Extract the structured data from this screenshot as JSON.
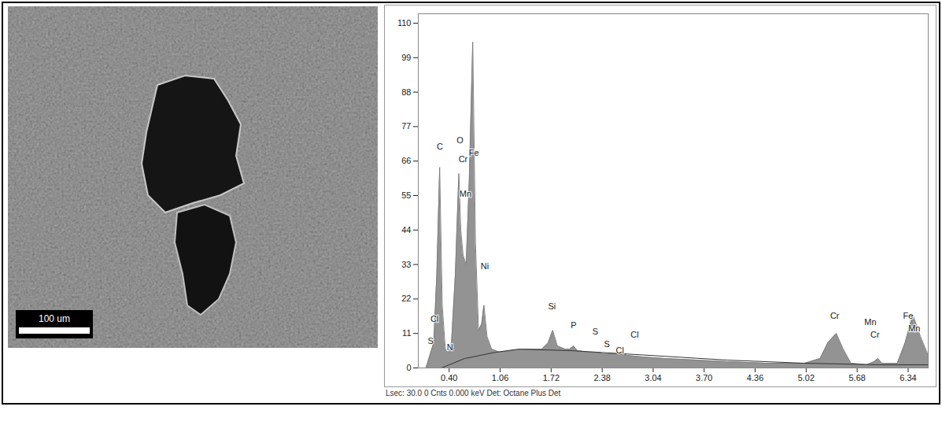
{
  "image": {
    "scale_bar_label": "100 um"
  },
  "chart_data": {
    "type": "area",
    "xlim": [
      0,
      6.6
    ],
    "xticks": [
      {
        "value": 0.4,
        "label": "0.40"
      },
      1.06,
      1.72,
      2.38,
      3.04,
      {
        "value": 3.7,
        "label": "3.70"
      },
      4.36,
      5.02,
      5.68,
      6.34
    ],
    "ylim": [
      0,
      113
    ],
    "yticks": [
      0,
      11,
      22,
      33,
      44,
      55,
      66,
      77,
      88,
      99,
      110
    ],
    "grid": false,
    "series": [
      {
        "type": "area",
        "color": "#808080",
        "x": [
          0.1,
          0.15,
          0.2,
          0.24,
          0.277,
          0.31,
          0.35,
          0.39,
          0.43,
          0.48,
          0.525,
          0.55,
          0.58,
          0.62,
          0.66,
          0.705,
          0.74,
          0.78,
          0.82,
          0.85,
          0.89,
          0.95,
          1.05,
          1.2,
          1.4,
          1.6,
          1.68,
          1.74,
          1.8,
          1.9,
          1.96,
          2.01,
          2.06,
          2.2,
          2.31,
          2.4,
          2.55,
          2.62,
          2.7,
          2.9,
          3.2,
          3.6,
          4.0,
          4.5,
          5.0,
          5.2,
          5.3,
          5.41,
          5.5,
          5.6,
          5.8,
          5.9,
          5.95,
          6.0,
          6.2,
          6.3,
          6.4,
          6.5,
          6.6
        ],
        "values": [
          0,
          4,
          8,
          30,
          64,
          20,
          6,
          5,
          8,
          30,
          62,
          44,
          36,
          33,
          60,
          104,
          40,
          12,
          14,
          20,
          10,
          6,
          5,
          5.5,
          6,
          6,
          8,
          12,
          7,
          6,
          6,
          7,
          5.5,
          5,
          5,
          4.5,
          4.5,
          5,
          4,
          3.5,
          3,
          2.5,
          2,
          1.5,
          1.5,
          3,
          8,
          11,
          6,
          1.5,
          1,
          2,
          3,
          1.5,
          1.5,
          8,
          17,
          10,
          4
        ]
      },
      {
        "type": "line",
        "color": "#333333",
        "x": [
          0.3,
          0.6,
          1.0,
          1.3,
          2.0,
          3.0,
          4.0,
          5.0,
          6.0,
          6.6
        ],
        "values": [
          0,
          3,
          5,
          6,
          5.5,
          4,
          2.5,
          1.5,
          1,
          1
        ]
      }
    ],
    "annotations": [
      {
        "text": "S",
        "x": 0.16,
        "y": 8
      },
      {
        "text": "Cl",
        "x": 0.21,
        "y": 15
      },
      {
        "text": "C",
        "x": 0.28,
        "y": 70
      },
      {
        "text": "N",
        "x": 0.41,
        "y": 6
      },
      {
        "text": "O",
        "x": 0.54,
        "y": 72
      },
      {
        "text": "Cr",
        "x": 0.58,
        "y": 66
      },
      {
        "text": "Mn",
        "x": 0.61,
        "y": 55
      },
      {
        "text": "Fe",
        "x": 0.72,
        "y": 68
      },
      {
        "text": "Ni",
        "x": 0.86,
        "y": 32
      },
      {
        "text": "Si",
        "x": 1.73,
        "y": 19
      },
      {
        "text": "P",
        "x": 2.01,
        "y": 13
      },
      {
        "text": "S",
        "x": 2.29,
        "y": 11
      },
      {
        "text": "S",
        "x": 2.44,
        "y": 7
      },
      {
        "text": "Cl",
        "x": 2.61,
        "y": 5
      },
      {
        "text": "Cl",
        "x": 2.8,
        "y": 10
      },
      {
        "text": "Cr",
        "x": 5.39,
        "y": 16
      },
      {
        "text": "Mn",
        "x": 5.85,
        "y": 14
      },
      {
        "text": "Cr",
        "x": 5.91,
        "y": 10
      },
      {
        "text": "Fe",
        "x": 6.34,
        "y": 16
      },
      {
        "text": "Mn",
        "x": 6.42,
        "y": 12
      }
    ],
    "footer": "Lsec: 30.0 0 Cnts 0.000 keV Det: Octane Plus Det"
  }
}
